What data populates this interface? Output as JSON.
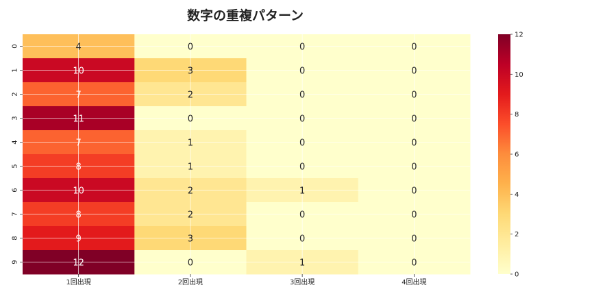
{
  "chart_data": {
    "type": "heatmap",
    "title": "数字の重複パターン",
    "xlabel": "",
    "ylabel": "",
    "columns": [
      "1回出現",
      "2回出現",
      "3回出現",
      "4回出現"
    ],
    "rows": [
      "0",
      "1",
      "2",
      "3",
      "4",
      "5",
      "6",
      "7",
      "8",
      "9"
    ],
    "values": [
      [
        4,
        0,
        0,
        0
      ],
      [
        10,
        3,
        0,
        0
      ],
      [
        7,
        2,
        0,
        0
      ],
      [
        11,
        0,
        0,
        0
      ],
      [
        7,
        1,
        0,
        0
      ],
      [
        8,
        1,
        0,
        0
      ],
      [
        10,
        2,
        1,
        0
      ],
      [
        8,
        2,
        0,
        0
      ],
      [
        9,
        3,
        0,
        0
      ],
      [
        12,
        0,
        1,
        0
      ]
    ],
    "annotations": true,
    "grid": true,
    "colormap": "YlOrRd",
    "colorbar": {
      "min": 0,
      "max": 12,
      "ticks": [
        0,
        2,
        4,
        6,
        8,
        10,
        12
      ]
    }
  }
}
